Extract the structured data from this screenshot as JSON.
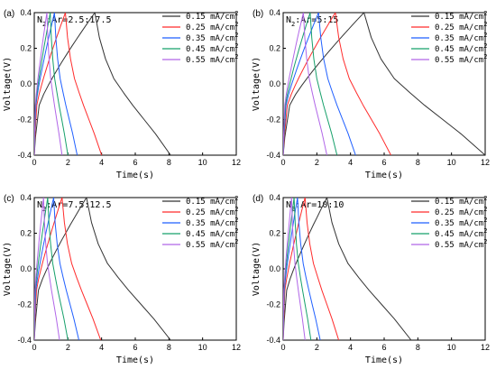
{
  "figure": {
    "colors": {
      "0.15": "#333333",
      "0.25": "#ff2b2b",
      "0.35": "#1f5fff",
      "0.45": "#16a06a",
      "0.55": "#b166e8"
    }
  },
  "chart_data": [
    {
      "type": "line",
      "panel_label": "(a)",
      "annotation": "N₂:Ar=2.5:17.5",
      "xlabel": "Time(s)",
      "ylabel": "Voltage(V)",
      "xlim": [
        0,
        12
      ],
      "ylim": [
        -0.4,
        0.4
      ],
      "xticks": [
        "0",
        "2",
        "4",
        "6",
        "8",
        "10",
        "12"
      ],
      "yticks": [
        "-0.4",
        "-0.2",
        "0.0",
        "0.2",
        "0.4"
      ],
      "grid": false,
      "legend_position": "top-right",
      "series": [
        {
          "name": "0.15 mA/cm²",
          "color": "#333333",
          "charge_end": 3.6,
          "discharge_end": 8.1
        },
        {
          "name": "0.25 mA/cm²",
          "color": "#ff2b2b",
          "charge_end": 1.85,
          "discharge_end": 4.0
        },
        {
          "name": "0.35 mA/cm²",
          "color": "#1f5fff",
          "charge_end": 1.2,
          "discharge_end": 2.55
        },
        {
          "name": "0.45 mA/cm²",
          "color": "#16a06a",
          "charge_end": 0.95,
          "discharge_end": 2.0
        },
        {
          "name": "0.55 mA/cm²",
          "color": "#b166e8",
          "charge_end": 0.75,
          "discharge_end": 1.65
        }
      ]
    },
    {
      "type": "line",
      "panel_label": "(b)",
      "annotation": "N₂:Ar=5:15",
      "xlabel": "Time(s)",
      "ylabel": "Voltage(V)",
      "xlim": [
        0,
        12
      ],
      "ylim": [
        -0.4,
        0.4
      ],
      "xticks": [
        "0",
        "2",
        "4",
        "6",
        "8",
        "10",
        "12"
      ],
      "yticks": [
        "-0.4",
        "-0.2",
        "0.0",
        "0.2",
        "0.4"
      ],
      "grid": false,
      "legend_position": "top-right",
      "series": [
        {
          "name": "0.15 mA/cm²",
          "color": "#333333",
          "charge_end": 4.8,
          "discharge_end": 12.0
        },
        {
          "name": "0.25 mA/cm²",
          "color": "#ff2b2b",
          "charge_end": 3.1,
          "discharge_end": 6.4
        },
        {
          "name": "0.35 mA/cm²",
          "color": "#1f5fff",
          "charge_end": 2.1,
          "discharge_end": 4.3
        },
        {
          "name": "0.45 mA/cm²",
          "color": "#16a06a",
          "charge_end": 1.6,
          "discharge_end": 3.2
        },
        {
          "name": "0.55 mA/cm²",
          "color": "#b166e8",
          "charge_end": 1.2,
          "discharge_end": 2.6
        }
      ]
    },
    {
      "type": "line",
      "panel_label": "(c)",
      "annotation": "N₂:Ar=7.5:12.5",
      "xlabel": "Time(s)",
      "ylabel": "Voltage(V)",
      "xlim": [
        0,
        12
      ],
      "ylim": [
        -0.4,
        0.4
      ],
      "xticks": [
        "0",
        "2",
        "4",
        "6",
        "8",
        "10",
        "12"
      ],
      "yticks": [
        "-0.4",
        "-0.2",
        "0.0",
        "0.2",
        "0.4"
      ],
      "grid": false,
      "legend_position": "top-right",
      "series": [
        {
          "name": "0.15 mA/cm²",
          "color": "#333333",
          "charge_end": 3.1,
          "discharge_end": 8.1
        },
        {
          "name": "0.25 mA/cm²",
          "color": "#ff2b2b",
          "charge_end": 1.65,
          "discharge_end": 3.95
        },
        {
          "name": "0.35 mA/cm²",
          "color": "#1f5fff",
          "charge_end": 1.15,
          "discharge_end": 2.65
        },
        {
          "name": "0.45 mA/cm²",
          "color": "#16a06a",
          "charge_end": 0.8,
          "discharge_end": 2.0
        },
        {
          "name": "0.55 mA/cm²",
          "color": "#b166e8",
          "charge_end": 0.55,
          "discharge_end": 1.5
        }
      ]
    },
    {
      "type": "line",
      "panel_label": "(d)",
      "annotation": "N₂:Ar=10:10",
      "xlabel": "Time(s)",
      "ylabel": "Voltage(V)",
      "xlim": [
        0,
        12
      ],
      "ylim": [
        -0.4,
        0.4
      ],
      "xticks": [
        "0",
        "2",
        "4",
        "6",
        "8",
        "10",
        "12"
      ],
      "yticks": [
        "-0.4",
        "-0.2",
        "0.0",
        "0.2",
        "0.4"
      ],
      "grid": false,
      "legend_position": "top-right",
      "series": [
        {
          "name": "0.15 mA/cm²",
          "color": "#333333",
          "charge_end": 2.6,
          "discharge_end": 7.6
        },
        {
          "name": "0.25 mA/cm²",
          "color": "#ff2b2b",
          "charge_end": 1.3,
          "discharge_end": 3.3
        },
        {
          "name": "0.35 mA/cm²",
          "color": "#1f5fff",
          "charge_end": 0.85,
          "discharge_end": 2.2
        },
        {
          "name": "0.45 mA/cm²",
          "color": "#16a06a",
          "charge_end": 0.65,
          "discharge_end": 1.65
        },
        {
          "name": "0.55 mA/cm²",
          "color": "#b166e8",
          "charge_end": 0.5,
          "discharge_end": 1.3
        }
      ]
    }
  ]
}
